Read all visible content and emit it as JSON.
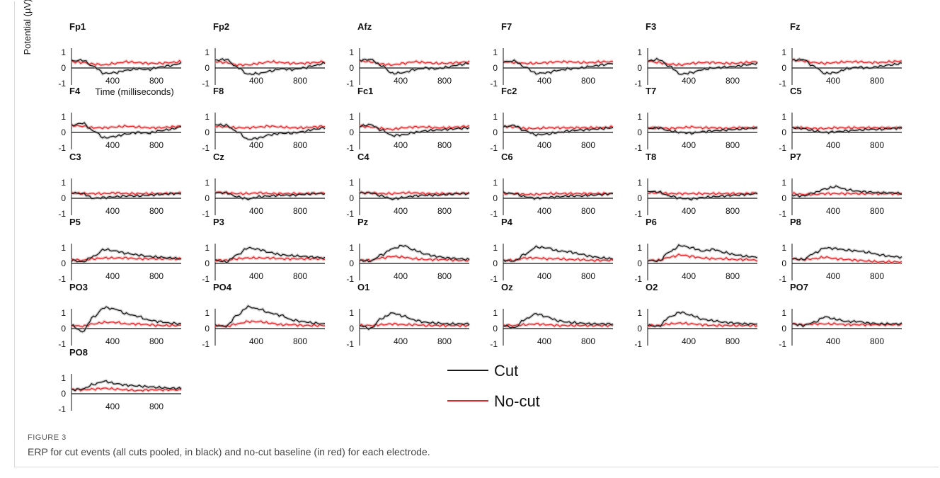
{
  "figure_label": "FIGURE 3",
  "caption": "ERP for cut events (all cuts pooled, in black) and no-cut baseline (in red) for each electrode.",
  "colors": {
    "cut": "#1a1a1a",
    "no_cut": "#e8262b",
    "band_cut": "#9a9a9a",
    "band_no_cut": "#f2a0a0"
  },
  "chart_data": {
    "type": "line",
    "ylabel": "Potential (µV)",
    "xlabel": "Time (milliseconds)",
    "xlim": [
      0,
      1000
    ],
    "ylim": [
      -1,
      1
    ],
    "x_ticks": [
      "400",
      "800"
    ],
    "y_ticks": [
      "1",
      "0",
      "-1"
    ],
    "legend": {
      "placement": "bottom-center",
      "entries": [
        "Cut",
        "No-cut"
      ]
    },
    "x": [
      0,
      100,
      200,
      300,
      400,
      500,
      600,
      700,
      800,
      900,
      1000
    ],
    "panels": [
      {
        "electrode": "Fp1",
        "cut": [
          0.45,
          0.5,
          0.1,
          -0.35,
          -0.3,
          -0.15,
          -0.05,
          -0.1,
          0.05,
          0.15,
          0.3
        ],
        "no_cut": [
          0.4,
          0.35,
          0.25,
          0.2,
          0.3,
          0.4,
          0.35,
          0.3,
          0.3,
          0.35,
          0.4
        ]
      },
      {
        "electrode": "Fp2",
        "cut": [
          0.5,
          0.55,
          0.05,
          -0.4,
          -0.35,
          -0.2,
          -0.05,
          -0.1,
          0.0,
          0.15,
          0.3
        ],
        "no_cut": [
          0.4,
          0.35,
          0.2,
          0.2,
          0.3,
          0.4,
          0.35,
          0.3,
          0.3,
          0.35,
          0.4
        ]
      },
      {
        "electrode": "Afz",
        "cut": [
          0.5,
          0.55,
          0.15,
          -0.35,
          -0.3,
          -0.1,
          0.0,
          -0.05,
          0.05,
          0.2,
          0.3
        ],
        "no_cut": [
          0.45,
          0.4,
          0.25,
          0.2,
          0.3,
          0.4,
          0.35,
          0.3,
          0.3,
          0.35,
          0.4
        ]
      },
      {
        "electrode": "F7",
        "cut": [
          0.4,
          0.45,
          0.05,
          -0.35,
          -0.3,
          -0.15,
          -0.05,
          0.0,
          0.1,
          0.2,
          0.3
        ],
        "no_cut": [
          0.4,
          0.35,
          0.3,
          0.3,
          0.35,
          0.4,
          0.4,
          0.35,
          0.35,
          0.4,
          0.4
        ]
      },
      {
        "electrode": "F3",
        "cut": [
          0.45,
          0.55,
          0.1,
          -0.4,
          -0.3,
          -0.1,
          0.0,
          0.05,
          0.1,
          0.2,
          0.3
        ],
        "no_cut": [
          0.45,
          0.35,
          0.25,
          0.2,
          0.3,
          0.35,
          0.35,
          0.3,
          0.3,
          0.35,
          0.4
        ]
      },
      {
        "electrode": "Fz",
        "cut": [
          0.5,
          0.55,
          0.1,
          -0.35,
          -0.3,
          -0.05,
          0.05,
          0.0,
          0.1,
          0.2,
          0.3
        ],
        "no_cut": [
          0.5,
          0.45,
          0.35,
          0.3,
          0.35,
          0.4,
          0.4,
          0.35,
          0.35,
          0.4,
          0.45
        ]
      },
      {
        "electrode": "F4",
        "cut": [
          0.45,
          0.6,
          0.1,
          -0.35,
          -0.25,
          -0.1,
          0.0,
          -0.05,
          0.1,
          0.2,
          0.35
        ],
        "no_cut": [
          0.45,
          0.4,
          0.3,
          0.3,
          0.35,
          0.4,
          0.35,
          0.3,
          0.3,
          0.35,
          0.4
        ]
      },
      {
        "electrode": "F8",
        "cut": [
          0.5,
          0.45,
          0.05,
          -0.45,
          -0.35,
          -0.15,
          -0.05,
          -0.05,
          0.05,
          0.2,
          0.3
        ],
        "no_cut": [
          0.4,
          0.35,
          0.3,
          0.3,
          0.35,
          0.4,
          0.35,
          0.3,
          0.3,
          0.35,
          0.4
        ]
      },
      {
        "electrode": "Fc1",
        "cut": [
          0.4,
          0.5,
          0.15,
          -0.2,
          -0.15,
          0.0,
          0.1,
          0.15,
          0.2,
          0.25,
          0.3
        ],
        "no_cut": [
          0.4,
          0.35,
          0.25,
          0.2,
          0.3,
          0.35,
          0.35,
          0.3,
          0.3,
          0.35,
          0.4
        ]
      },
      {
        "electrode": "Fc2",
        "cut": [
          0.35,
          0.45,
          0.1,
          -0.15,
          -0.1,
          0.0,
          0.1,
          0.15,
          0.2,
          0.25,
          0.3
        ],
        "no_cut": [
          0.4,
          0.35,
          0.25,
          0.25,
          0.3,
          0.3,
          0.3,
          0.3,
          0.3,
          0.3,
          0.35
        ]
      },
      {
        "electrode": "T7",
        "cut": [
          0.25,
          0.3,
          0.1,
          0.0,
          -0.05,
          0.05,
          0.1,
          0.15,
          0.2,
          0.25,
          0.3
        ],
        "no_cut": [
          0.3,
          0.3,
          0.25,
          0.3,
          0.35,
          0.3,
          0.3,
          0.25,
          0.3,
          0.3,
          0.3
        ]
      },
      {
        "electrode": "C5",
        "cut": [
          0.3,
          0.25,
          0.1,
          0.0,
          0.05,
          0.1,
          0.15,
          0.2,
          0.2,
          0.25,
          0.3
        ],
        "no_cut": [
          0.3,
          0.3,
          0.25,
          0.25,
          0.3,
          0.3,
          0.3,
          0.3,
          0.3,
          0.3,
          0.3
        ]
      },
      {
        "electrode": "C3",
        "cut": [
          0.35,
          0.3,
          0.0,
          0.05,
          0.1,
          0.15,
          0.15,
          0.2,
          0.25,
          0.3,
          0.3
        ],
        "no_cut": [
          0.35,
          0.3,
          0.3,
          0.3,
          0.35,
          0.3,
          0.3,
          0.3,
          0.3,
          0.3,
          0.35
        ]
      },
      {
        "electrode": "Cz",
        "cut": [
          0.35,
          0.35,
          0.1,
          -0.05,
          0.1,
          0.15,
          0.2,
          0.2,
          0.25,
          0.3,
          0.3
        ],
        "no_cut": [
          0.4,
          0.35,
          0.3,
          0.3,
          0.35,
          0.3,
          0.3,
          0.3,
          0.3,
          0.3,
          0.35
        ]
      },
      {
        "electrode": "C4",
        "cut": [
          0.35,
          0.35,
          0.15,
          -0.05,
          0.05,
          0.15,
          0.2,
          0.2,
          0.25,
          0.3,
          0.3
        ],
        "no_cut": [
          0.35,
          0.35,
          0.3,
          0.3,
          0.35,
          0.35,
          0.3,
          0.3,
          0.3,
          0.3,
          0.35
        ]
      },
      {
        "electrode": "C6",
        "cut": [
          0.35,
          0.3,
          0.1,
          0.0,
          0.05,
          0.1,
          0.15,
          0.15,
          0.2,
          0.25,
          0.3
        ],
        "no_cut": [
          0.3,
          0.3,
          0.25,
          0.25,
          0.3,
          0.3,
          0.3,
          0.3,
          0.3,
          0.3,
          0.3
        ]
      },
      {
        "electrode": "T8",
        "cut": [
          0.45,
          0.4,
          0.15,
          0.0,
          -0.05,
          0.05,
          0.1,
          0.15,
          0.2,
          0.25,
          0.3
        ],
        "no_cut": [
          0.35,
          0.35,
          0.3,
          0.3,
          0.3,
          0.3,
          0.3,
          0.3,
          0.3,
          0.3,
          0.35
        ]
      },
      {
        "electrode": "P7",
        "cut": [
          0.2,
          0.15,
          0.35,
          0.6,
          0.75,
          0.55,
          0.45,
          0.4,
          0.35,
          0.35,
          0.3
        ],
        "no_cut": [
          0.3,
          0.25,
          0.25,
          0.3,
          0.3,
          0.3,
          0.3,
          0.3,
          0.3,
          0.3,
          0.3
        ]
      },
      {
        "electrode": "P5",
        "cut": [
          0.2,
          0.1,
          0.45,
          0.9,
          0.8,
          0.65,
          0.55,
          0.45,
          0.4,
          0.35,
          0.3
        ],
        "no_cut": [
          0.25,
          0.2,
          0.3,
          0.35,
          0.35,
          0.35,
          0.3,
          0.3,
          0.3,
          0.3,
          0.3
        ]
      },
      {
        "electrode": "P3",
        "cut": [
          0.2,
          0.1,
          0.55,
          1.0,
          0.9,
          0.7,
          0.55,
          0.5,
          0.45,
          0.4,
          0.35
        ],
        "no_cut": [
          0.2,
          0.2,
          0.3,
          0.35,
          0.35,
          0.35,
          0.3,
          0.3,
          0.3,
          0.3,
          0.3
        ]
      },
      {
        "electrode": "Pz",
        "cut": [
          0.2,
          0.15,
          0.55,
          0.95,
          1.15,
          0.85,
          0.6,
          0.45,
          0.35,
          0.3,
          0.25
        ],
        "no_cut": [
          0.2,
          0.2,
          0.35,
          0.45,
          0.4,
          0.3,
          0.25,
          0.25,
          0.25,
          0.2,
          0.2
        ]
      },
      {
        "electrode": "P4",
        "cut": [
          0.2,
          0.15,
          0.6,
          1.05,
          1.0,
          0.8,
          0.75,
          0.6,
          0.45,
          0.35,
          0.3
        ],
        "no_cut": [
          0.2,
          0.2,
          0.35,
          0.35,
          0.3,
          0.3,
          0.25,
          0.25,
          0.2,
          0.2,
          0.2
        ]
      },
      {
        "electrode": "P6",
        "cut": [
          0.2,
          0.15,
          0.75,
          1.15,
          1.0,
          0.8,
          0.9,
          0.7,
          0.55,
          0.45,
          0.4
        ],
        "no_cut": [
          0.2,
          0.2,
          0.4,
          0.55,
          0.45,
          0.35,
          0.3,
          0.3,
          0.25,
          0.25,
          0.2
        ]
      },
      {
        "electrode": "P8",
        "cut": [
          0.3,
          0.25,
          0.65,
          1.0,
          0.95,
          0.85,
          0.8,
          0.7,
          0.55,
          0.45,
          0.4
        ],
        "no_cut": [
          0.3,
          0.25,
          0.3,
          0.4,
          0.3,
          0.25,
          0.2,
          0.15,
          0.1,
          0.1,
          0.1
        ]
      },
      {
        "electrode": "PO3",
        "cut": [
          0.2,
          -0.2,
          0.75,
          1.35,
          1.25,
          0.95,
          0.8,
          0.55,
          0.45,
          0.35,
          0.3
        ],
        "no_cut": [
          0.2,
          0.15,
          0.3,
          0.4,
          0.4,
          0.3,
          0.3,
          0.25,
          0.2,
          0.2,
          0.2
        ]
      },
      {
        "electrode": "PO4",
        "cut": [
          0.2,
          0.15,
          0.85,
          1.4,
          1.25,
          1.0,
          0.85,
          0.55,
          0.45,
          0.35,
          0.3
        ],
        "no_cut": [
          0.2,
          0.15,
          0.3,
          0.45,
          0.45,
          0.35,
          0.25,
          0.25,
          0.2,
          0.2,
          0.2
        ]
      },
      {
        "electrode": "O1",
        "cut": [
          0.2,
          0.0,
          0.65,
          1.0,
          0.8,
          0.55,
          0.4,
          0.35,
          0.3,
          0.3,
          0.3
        ],
        "no_cut": [
          0.2,
          0.2,
          0.25,
          0.3,
          0.25,
          0.25,
          0.2,
          0.2,
          0.2,
          0.2,
          0.2
        ]
      },
      {
        "electrode": "Oz",
        "cut": [
          0.2,
          0.05,
          0.6,
          0.95,
          0.75,
          0.5,
          0.4,
          0.35,
          0.3,
          0.3,
          0.3
        ],
        "no_cut": [
          0.2,
          0.2,
          0.25,
          0.3,
          0.25,
          0.2,
          0.2,
          0.2,
          0.2,
          0.2,
          0.2
        ]
      },
      {
        "electrode": "O2",
        "cut": [
          0.2,
          0.15,
          0.75,
          1.05,
          0.85,
          0.6,
          0.5,
          0.4,
          0.35,
          0.3,
          0.3
        ],
        "no_cut": [
          0.2,
          0.2,
          0.3,
          0.35,
          0.3,
          0.25,
          0.2,
          0.2,
          0.2,
          0.2,
          0.2
        ]
      },
      {
        "electrode": "PO7",
        "cut": [
          0.3,
          0.2,
          0.4,
          0.75,
          0.6,
          0.45,
          0.45,
          0.35,
          0.3,
          0.3,
          0.3
        ],
        "no_cut": [
          0.3,
          0.25,
          0.3,
          0.3,
          0.3,
          0.25,
          0.25,
          0.25,
          0.25,
          0.25,
          0.25
        ]
      },
      {
        "electrode": "PO8",
        "cut": [
          0.25,
          0.3,
          0.6,
          0.8,
          0.65,
          0.55,
          0.5,
          0.45,
          0.4,
          0.35,
          0.35
        ],
        "no_cut": [
          0.3,
          0.25,
          0.3,
          0.35,
          0.3,
          0.25,
          0.2,
          0.25,
          0.25,
          0.25,
          0.25
        ]
      }
    ]
  }
}
